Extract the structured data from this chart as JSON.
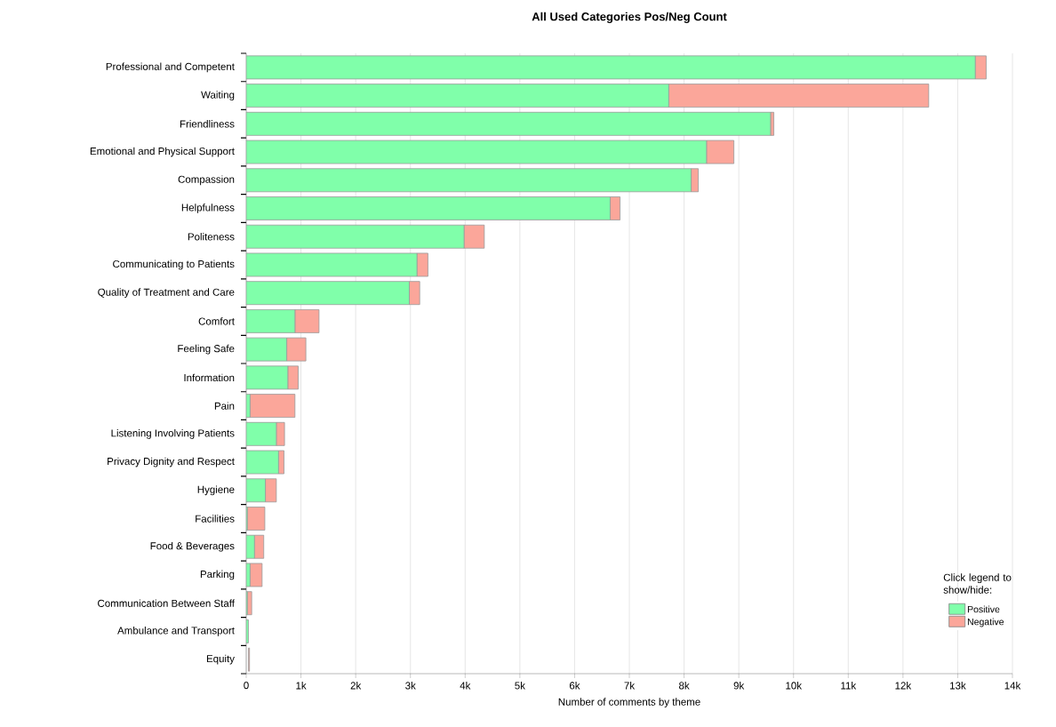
{
  "chart_data": {
    "type": "bar",
    "orientation": "horizontal",
    "stacked": true,
    "title": "All Used Categories Pos/Neg Count",
    "xlabel": "Number of comments by theme",
    "legend_title": "Click legend to show/hide:",
    "categories": [
      "Professional and Competent",
      "Waiting",
      "Friendliness",
      "Emotional and Physical Support",
      "Compassion",
      "Helpfulness",
      "Politeness",
      "Communicating to Patients",
      "Quality of Treatment and Care",
      "Comfort",
      "Feeling Safe",
      "Information",
      "Pain",
      "Listening Involving Patients",
      "Privacy Dignity and Respect",
      "Hygiene",
      "Facilities",
      "Food & Beverages",
      "Parking",
      "Communication Between Staff",
      "Ambulance and Transport",
      "Equity"
    ],
    "series": [
      {
        "name": "Positive",
        "color": "#80ffaa",
        "values": [
          13320,
          7720,
          9580,
          8410,
          8130,
          6650,
          3980,
          3120,
          2980,
          890,
          740,
          760,
          70,
          550,
          590,
          350,
          20,
          150,
          70,
          20,
          40,
          null
        ]
      },
      {
        "name": "Negative",
        "color": "#fba69a",
        "values": [
          200,
          4750,
          60,
          500,
          130,
          180,
          370,
          200,
          190,
          440,
          350,
          190,
          820,
          150,
          100,
          200,
          320,
          170,
          220,
          80,
          null,
          20
        ]
      }
    ],
    "xlim": [
      0,
      14000
    ],
    "xticks": [
      0,
      {
        "value": 1000,
        "label": "1k"
      },
      {
        "value": 2000,
        "label": "2k"
      },
      {
        "value": 3000,
        "label": "3k"
      },
      {
        "value": 4000,
        "label": "4k"
      },
      {
        "value": 5000,
        "label": "5k"
      },
      {
        "value": 6000,
        "label": "6k"
      },
      {
        "value": 7000,
        "label": "7k"
      },
      {
        "value": 8000,
        "label": "8k"
      },
      {
        "value": 9000,
        "label": "9k"
      },
      {
        "value": 10000,
        "label": "10k"
      },
      {
        "value": 11000,
        "label": "11k"
      },
      {
        "value": 12000,
        "label": "12k"
      },
      {
        "value": 13000,
        "label": "13k"
      },
      {
        "value": 14000,
        "label": "14k"
      }
    ],
    "grid": "x",
    "legend": "bottom right"
  }
}
